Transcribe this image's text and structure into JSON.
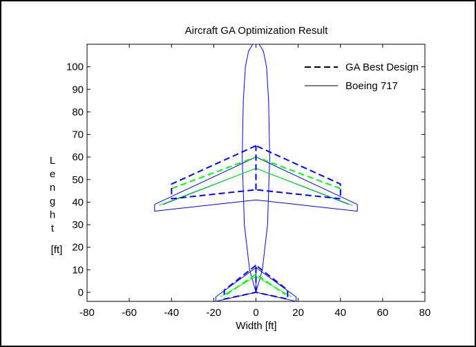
{
  "chart_data": {
    "type": "line",
    "title": "Aircraft GA Optimization Result",
    "xlabel": "Width [ft]",
    "ylabel_chars": [
      "L",
      "e",
      "n",
      "g",
      "h",
      "t"
    ],
    "ylabel_units": "[ft]",
    "xlim": [
      -80,
      80
    ],
    "ylim": [
      -4,
      110
    ],
    "xticks": [
      -80,
      -60,
      -40,
      -20,
      0,
      20,
      40,
      60,
      80
    ],
    "yticks": [
      0,
      10,
      20,
      30,
      40,
      50,
      60,
      70,
      80,
      90,
      100
    ],
    "grid": false,
    "legend_position": "top-right",
    "legend": [
      {
        "label": "GA Best Design",
        "style": "dashed",
        "color": "#000000"
      },
      {
        "label": "Boeing 717",
        "style": "solid",
        "color": "#000000"
      }
    ],
    "series": [
      {
        "name": "Boeing 717",
        "color": "#0000ff",
        "dash": false,
        "width": 1,
        "paths": [
          {
            "id": "fuselage",
            "points": [
              [
                0,
                0
              ],
              [
                -3,
                10
              ],
              [
                -5.5,
                30
              ],
              [
                -6.5,
                60
              ],
              [
                -6,
                85
              ],
              [
                -5,
                100
              ],
              [
                -3.5,
                107
              ],
              [
                -1.5,
                110
              ],
              [
                1.5,
                110
              ],
              [
                3.5,
                107
              ],
              [
                5,
                100
              ],
              [
                6,
                85
              ],
              [
                6.5,
                60
              ],
              [
                5.5,
                30
              ],
              [
                3,
                10
              ],
              [
                0,
                0
              ]
            ]
          },
          {
            "id": "wing-outline",
            "points": [
              [
                0,
                60
              ],
              [
                -48,
                39
              ],
              [
                -48,
                36
              ],
              [
                0,
                41
              ],
              [
                48,
                36
              ],
              [
                48,
                39
              ],
              [
                0,
                60
              ]
            ]
          },
          {
            "id": "wing-inner-left",
            "points": [
              [
                0,
                55
              ],
              [
                -44,
                39
              ]
            ]
          },
          {
            "id": "wing-inner-right",
            "points": [
              [
                0,
                55
              ],
              [
                44,
                39
              ]
            ]
          },
          {
            "id": "tail-outline",
            "points": [
              [
                0,
                11
              ],
              [
                -19,
                -2
              ],
              [
                -19,
                -4
              ],
              [
                0,
                0
              ],
              [
                19,
                -4
              ],
              [
                19,
                -2
              ],
              [
                0,
                11
              ]
            ]
          },
          {
            "id": "tail-center",
            "points": [
              [
                0,
                0
              ],
              [
                0,
                11
              ]
            ]
          }
        ]
      },
      {
        "name": "",
        "color": "#00ff00",
        "dash": false,
        "width": 1,
        "paths": [
          {
            "id": "wing-mid-left",
            "points": [
              [
                0,
                55
              ],
              [
                -46,
                38.5
              ]
            ]
          },
          {
            "id": "wing-mid-right",
            "points": [
              [
                0,
                55
              ],
              [
                46,
                38.5
              ]
            ]
          },
          {
            "id": "tail-mid-left",
            "points": [
              [
                0,
                7
              ],
              [
                -17,
                -2
              ]
            ]
          },
          {
            "id": "tail-mid-right",
            "points": [
              [
                0,
                7
              ],
              [
                17,
                -2
              ]
            ]
          }
        ]
      },
      {
        "name": "",
        "color": "#00ff00",
        "dash": true,
        "width": 2,
        "paths": [
          {
            "id": "wing-ga-sweep",
            "points": [
              [
                -40,
                46
              ],
              [
                0,
                60
              ],
              [
                40,
                46
              ]
            ]
          },
          {
            "id": "tail-ga-sweep",
            "points": [
              [
                -14,
                -1
              ],
              [
                0,
                8
              ],
              [
                14,
                -1
              ]
            ]
          }
        ]
      },
      {
        "name": "GA Best Design",
        "color": "#0000ff",
        "dash": true,
        "width": 2,
        "paths": [
          {
            "id": "ga-wing",
            "points": [
              [
                0,
                65
              ],
              [
                -40,
                48
              ],
              [
                -40,
                41.5
              ],
              [
                0,
                45.5
              ],
              [
                40,
                41.5
              ],
              [
                40,
                48
              ],
              [
                0,
                65
              ]
            ]
          },
          {
            "id": "ga-wing-center",
            "points": [
              [
                0,
                45.5
              ],
              [
                0,
                65
              ]
            ]
          },
          {
            "id": "ga-tail",
            "points": [
              [
                0,
                12
              ],
              [
                -15,
                1
              ],
              [
                -15,
                -3
              ],
              [
                0,
                0
              ],
              [
                15,
                -3
              ],
              [
                15,
                1
              ],
              [
                0,
                12
              ]
            ]
          },
          {
            "id": "ga-tail-center",
            "points": [
              [
                0,
                0
              ],
              [
                0,
                12
              ]
            ]
          }
        ]
      }
    ]
  }
}
